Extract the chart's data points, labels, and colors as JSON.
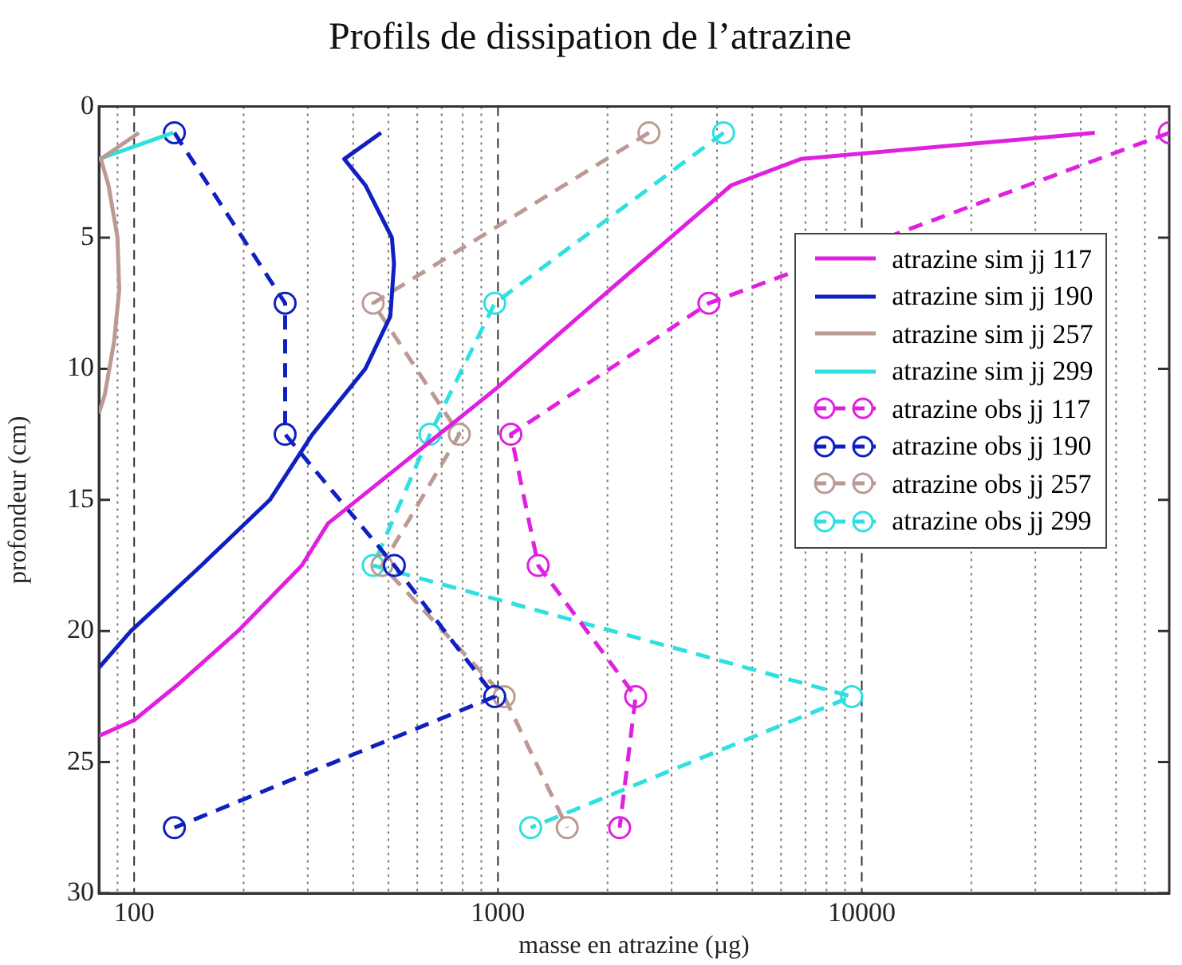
{
  "chart_data": {
    "type": "line",
    "title": "Profils de dissipation de l’atrazine",
    "xlabel": "masse en atrazine (µg)",
    "ylabel": "profondeur (cm)",
    "log": "x",
    "grid": "x",
    "legend": "right",
    "xlim": [
      80,
      70000
    ],
    "xticks": [
      {
        "value": 80,
        "label": null
      },
      {
        "value": 90,
        "label": null
      },
      100,
      {
        "value": 200,
        "label": null
      },
      {
        "value": 300,
        "label": null
      },
      {
        "value": 400,
        "label": null
      },
      {
        "value": 500,
        "label": null
      },
      {
        "value": 600,
        "label": null
      },
      {
        "value": 700,
        "label": null
      },
      {
        "value": 800,
        "label": null
      },
      {
        "value": 900,
        "label": null
      },
      1000,
      {
        "value": 2000,
        "label": null
      },
      {
        "value": 3000,
        "label": null
      },
      {
        "value": 4000,
        "label": null
      },
      {
        "value": 5000,
        "label": null
      },
      {
        "value": 6000,
        "label": null
      },
      {
        "value": 7000,
        "label": null
      },
      {
        "value": 8000,
        "label": null
      },
      {
        "value": 9000,
        "label": null
      },
      10000,
      {
        "value": 20000,
        "label": null
      },
      {
        "value": 30000,
        "label": null
      },
      {
        "value": 40000,
        "label": null
      },
      {
        "value": 50000,
        "label": null
      },
      {
        "value": 60000,
        "label": null
      },
      {
        "value": 70000,
        "label": null
      }
    ],
    "ylim": [
      30,
      0
    ],
    "yticks": [
      0,
      5,
      10,
      15,
      20,
      25,
      30
    ],
    "series": [
      {
        "name": "atrazine sim jj 117",
        "type": "line",
        "color": "#e020e0",
        "marker": "none",
        "line_style": "solid",
        "x": [
          43700,
          6800,
          4380,
          1770,
          1000,
          341,
          289,
          193,
          133,
          100,
          80
        ],
        "values": [
          1,
          2,
          3,
          7.7,
          10.7,
          15.9,
          17.5,
          20,
          22,
          23.4,
          24
        ]
      },
      {
        "name": "atrazine sim jj 190",
        "type": "line",
        "color": "#1020c0",
        "marker": "none",
        "line_style": "solid",
        "x": [
          477,
          378,
          432,
          511,
          518,
          506,
          432,
          309,
          236,
          153,
          98,
          80
        ],
        "values": [
          1,
          2,
          3,
          5,
          6,
          8,
          10,
          12.5,
          15,
          17.5,
          20,
          21.4
        ]
      },
      {
        "name": "atrazine sim jj 257",
        "type": "line",
        "color": "#bc9a94",
        "marker": "none",
        "line_style": "solid",
        "x": [
          103,
          81,
          85,
          90,
          91,
          88,
          83,
          80
        ],
        "values": [
          1,
          2,
          3,
          5,
          7,
          9,
          11,
          11.7
        ]
      },
      {
        "name": "atrazine sim jj 299",
        "type": "line",
        "color": "#30e0e0",
        "marker": "none",
        "line_style": "solid",
        "x": [
          128,
          80
        ],
        "values": [
          1,
          2
        ]
      },
      {
        "name": "atrazine obs jj 117",
        "type": "line",
        "color": "#e020e0",
        "marker": "circle",
        "line_style": "dashed",
        "x": [
          70000,
          3800,
          1085,
          1290,
          2390,
          2160
        ],
        "values": [
          1,
          7.5,
          12.5,
          17.5,
          22.5,
          27.5
        ]
      },
      {
        "name": "atrazine obs jj 190",
        "type": "line",
        "color": "#1020c0",
        "marker": "circle",
        "line_style": "dashed",
        "x": [
          129,
          260,
          260,
          519,
          980,
          129
        ],
        "values": [
          1,
          7.5,
          12.5,
          17.5,
          22.5,
          27.5
        ]
      },
      {
        "name": "atrazine obs jj 257",
        "type": "line",
        "color": "#bc9a94",
        "marker": "circle",
        "line_style": "dashed",
        "x": [
          2600,
          454,
          783,
          480,
          1040,
          1550
        ],
        "values": [
          1,
          7.5,
          12.5,
          17.5,
          22.5,
          27.5
        ]
      },
      {
        "name": "atrazine obs jj 299",
        "type": "line",
        "color": "#30e0e0",
        "marker": "circle",
        "line_style": "dashed",
        "x": [
          4170,
          980,
          650,
          454,
          9380,
          1230
        ],
        "values": [
          1,
          7.5,
          12.5,
          17.5,
          22.5,
          27.5
        ]
      }
    ]
  }
}
